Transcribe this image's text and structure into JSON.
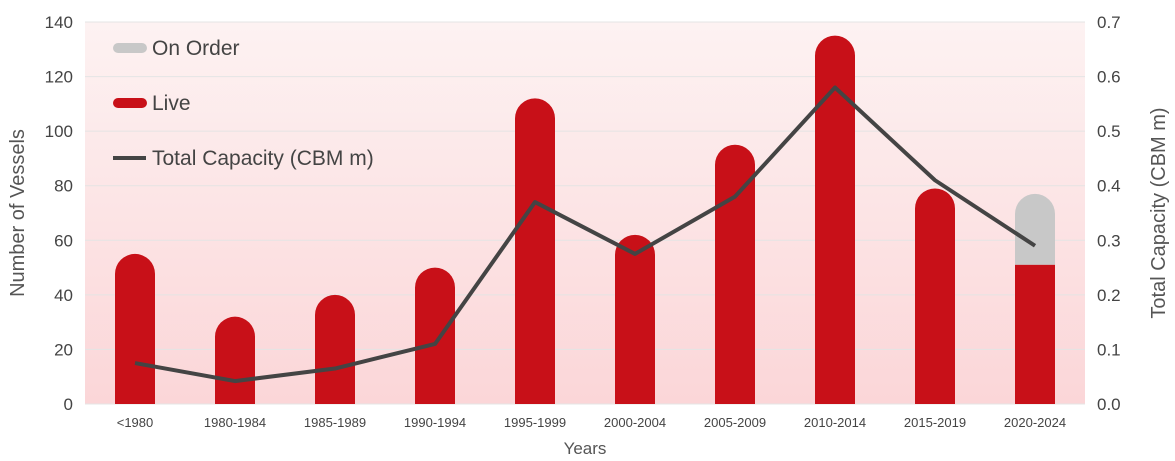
{
  "chart_data": {
    "type": "bar",
    "categories": [
      "<1980",
      "1980-1984",
      "1985-1989",
      "1990-1994",
      "1995-1999",
      "2000-2004",
      "2005-2009",
      "2010-2014",
      "2015-2019",
      "2020-2024"
    ],
    "series": [
      {
        "name": "Live",
        "type": "bar",
        "stack": "vessels",
        "axis": "left",
        "color": "#c81018",
        "values": [
          55,
          32,
          40,
          50,
          112,
          62,
          95,
          135,
          79,
          51
        ]
      },
      {
        "name": "On Order",
        "type": "bar",
        "stack": "vessels",
        "axis": "left",
        "color": "#c8c8c8",
        "values": [
          0,
          0,
          0,
          0,
          0,
          0,
          0,
          0,
          0,
          26
        ]
      },
      {
        "name": "Total Capacity (CBM m)",
        "type": "line",
        "axis": "right",
        "color": "#444444",
        "values": [
          0.075,
          0.042,
          0.065,
          0.11,
          0.37,
          0.275,
          0.38,
          0.58,
          0.41,
          0.29
        ]
      }
    ],
    "xlabel": "Years",
    "ylabel": "Number of Vessels",
    "y2label": "Total Capacity (CBM m)",
    "ylim": [
      0,
      140
    ],
    "y2lim": [
      0,
      0.7
    ],
    "yticks": [
      "0",
      "20",
      "40",
      "60",
      "80",
      "100",
      "120",
      "140"
    ],
    "y2ticks": [
      "0.0",
      "0.1",
      "0.2",
      "0.3",
      "0.4",
      "0.5",
      "0.6",
      "0.7"
    ],
    "legend": {
      "position": "top-left",
      "order": [
        "On Order",
        "Live",
        "Total Capacity (CBM m)"
      ]
    },
    "grid": "horizontal"
  }
}
